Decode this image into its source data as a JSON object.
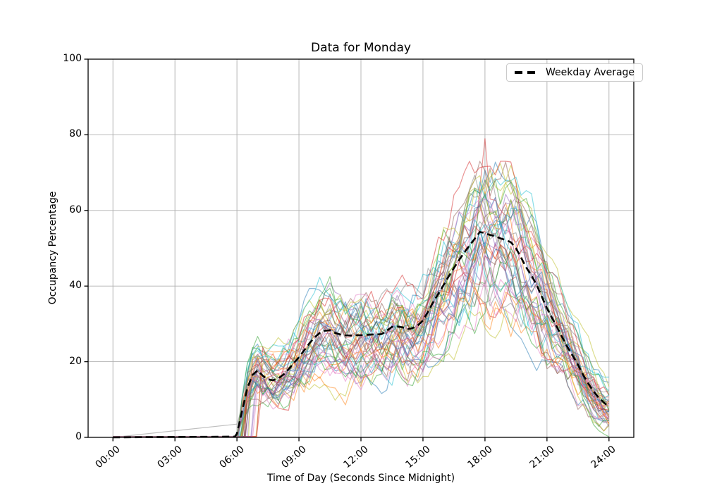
{
  "chart_data": {
    "type": "line",
    "title": "Data for Monday",
    "xlabel": "Time of Day (Seconds Since Midnight)",
    "ylabel": "Occupancy Percentage",
    "xlim_hours": [
      -1.2,
      25.2
    ],
    "ylim": [
      0,
      100
    ],
    "grid": true,
    "grid_color": "#b0b0b0",
    "spine_color": "#000000",
    "background": "#ffffff",
    "x_ticks": [
      {
        "hour": 0,
        "label": "00:00"
      },
      {
        "hour": 3,
        "label": "03:00"
      },
      {
        "hour": 6,
        "label": "06:00"
      },
      {
        "hour": 9,
        "label": "09:00"
      },
      {
        "hour": 12,
        "label": "12:00"
      },
      {
        "hour": 15,
        "label": "15:00"
      },
      {
        "hour": 18,
        "label": "18:00"
      },
      {
        "hour": 21,
        "label": "21:00"
      },
      {
        "hour": 24,
        "label": "24:00"
      }
    ],
    "y_ticks": [
      {
        "value": 0,
        "label": "0"
      },
      {
        "value": 20,
        "label": "20"
      },
      {
        "value": 40,
        "label": "40"
      },
      {
        "value": 60,
        "label": "60"
      },
      {
        "value": 80,
        "label": "80"
      },
      {
        "value": 100,
        "label": "100"
      }
    ],
    "legend": {
      "label": "Weekday Average",
      "position": "upper right",
      "line_style": "dashed",
      "line_color": "#000000"
    },
    "average_series": {
      "name": "Weekday Average",
      "color": "#000000",
      "style": "dashed",
      "x_hours": [
        0,
        5.9,
        6,
        6.25,
        6.5,
        6.75,
        7,
        7.25,
        7.5,
        7.75,
        8,
        8.25,
        8.5,
        8.75,
        9,
        9.25,
        9.5,
        9.75,
        10,
        10.25,
        10.5,
        10.75,
        11,
        11.25,
        11.5,
        11.75,
        12,
        12.25,
        12.5,
        12.75,
        13,
        13.25,
        13.5,
        13.75,
        14,
        14.25,
        14.5,
        14.75,
        15,
        15.25,
        15.5,
        15.75,
        16,
        16.25,
        16.5,
        16.75,
        17,
        17.25,
        17.5,
        17.75,
        18,
        18.25,
        18.5,
        18.75,
        19,
        19.25,
        19.5,
        19.75,
        20,
        20.25,
        20.5,
        20.75,
        21,
        21.25,
        21.5,
        21.75,
        22,
        22.25,
        22.5,
        22.75,
        23,
        23.25,
        23.5,
        23.75,
        24
      ],
      "values": [
        0,
        0.2,
        1,
        7,
        13,
        16.5,
        17.7,
        16.3,
        15.3,
        15.1,
        15.6,
        16.6,
        18,
        19.6,
        21.2,
        23,
        24.8,
        26.4,
        27.6,
        28.2,
        28.3,
        27.6,
        27.2,
        27,
        26.9,
        27,
        27,
        27.1,
        27.2,
        27.2,
        27.3,
        28.2,
        29.2,
        29.3,
        29.1,
        28.6,
        28.9,
        29.6,
        30.9,
        33.3,
        35.8,
        38,
        40.3,
        42.6,
        44.8,
        46.9,
        48.9,
        50.7,
        52.5,
        54.3,
        54,
        53.5,
        53.2,
        52.6,
        52.2,
        51.6,
        50,
        47.5,
        44.9,
        42.8,
        40.3,
        37.2,
        34.1,
        31.5,
        29,
        26.3,
        23.8,
        21.5,
        19.2,
        16.5,
        14.2,
        12.2,
        10.5,
        9.2,
        8
      ]
    },
    "individual_traces": {
      "description": "Semi-transparent per-day occupancy traces; flat at 0 until ~06:00 then jagged rise following the average",
      "count": 48,
      "alpha": 0.5,
      "line_width": 1.2,
      "palette": [
        "#1f77b4",
        "#ff7f0e",
        "#2ca02c",
        "#d62728",
        "#9467bd",
        "#8c564b",
        "#e377c2",
        "#7f7f7f",
        "#bcbd22",
        "#17becf"
      ],
      "rise_start_hour": 6.0,
      "envelope": [
        {
          "hour": 6,
          "min": 0,
          "max": 5
        },
        {
          "hour": 7,
          "min": 5,
          "max": 27
        },
        {
          "hour": 8,
          "min": 5,
          "max": 24
        },
        {
          "hour": 9,
          "min": 12,
          "max": 32
        },
        {
          "hour": 10,
          "min": 16,
          "max": 38
        },
        {
          "hour": 11,
          "min": 16,
          "max": 42
        },
        {
          "hour": 12,
          "min": 17,
          "max": 46
        },
        {
          "hour": 13,
          "min": 18,
          "max": 45
        },
        {
          "hour": 14,
          "min": 18,
          "max": 44
        },
        {
          "hour": 15,
          "min": 20,
          "max": 45
        },
        {
          "hour": 16,
          "min": 25,
          "max": 58
        },
        {
          "hour": 17,
          "min": 32,
          "max": 68
        },
        {
          "hour": 18,
          "min": 37,
          "max": 79
        },
        {
          "hour": 19,
          "min": 35,
          "max": 70
        },
        {
          "hour": 20,
          "min": 28,
          "max": 62
        },
        {
          "hour": 21,
          "min": 22,
          "max": 50
        },
        {
          "hour": 22,
          "min": 14,
          "max": 40
        },
        {
          "hour": 23,
          "min": 7,
          "max": 30
        },
        {
          "hour": 24,
          "min": 1,
          "max": 23
        }
      ],
      "peak_outlier": {
        "hour": 18.0,
        "value": 79,
        "color": "#d62728"
      },
      "early_riser": {
        "start_hour": 0,
        "end_hour": 6,
        "end_value": 3.5,
        "color": "#7f7f7f"
      }
    }
  }
}
